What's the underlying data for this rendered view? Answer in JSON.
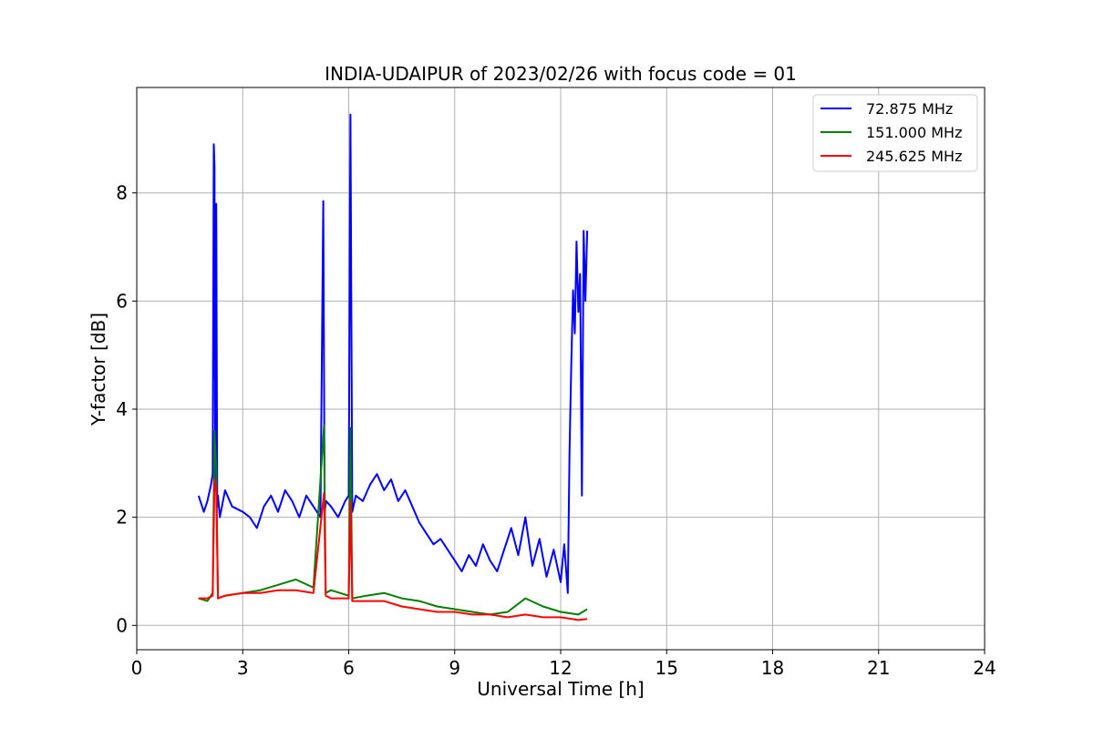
{
  "chart_data": {
    "type": "line",
    "title": "INDIA-UDAIPUR of 2023/02/26 with focus code = 01",
    "xlabel": "Universal Time [h]",
    "ylabel": "Y-factor [dB]",
    "xlim": [
      0,
      24
    ],
    "ylim": [
      -0.45,
      9.95
    ],
    "xticks": [
      0,
      3,
      6,
      9,
      12,
      15,
      18,
      21,
      24
    ],
    "yticks": [
      0,
      2,
      4,
      6,
      8
    ],
    "grid": true,
    "legend_position": "top-right",
    "series": [
      {
        "name": "72.875 MHz",
        "color": "#0000ff",
        "x": [
          1.75,
          1.9,
          2.0,
          2.1,
          2.15,
          2.18,
          2.2,
          2.22,
          2.25,
          2.28,
          2.3,
          2.35,
          2.5,
          2.7,
          3.0,
          3.2,
          3.4,
          3.6,
          3.8,
          4.0,
          4.2,
          4.4,
          4.6,
          4.8,
          5.0,
          5.2,
          5.28,
          5.32,
          5.36,
          5.5,
          5.7,
          5.9,
          6.0,
          6.05,
          6.1,
          6.2,
          6.4,
          6.6,
          6.8,
          7.0,
          7.2,
          7.4,
          7.6,
          7.8,
          8.0,
          8.2,
          8.4,
          8.6,
          8.8,
          9.0,
          9.2,
          9.4,
          9.6,
          9.8,
          10.0,
          10.2,
          10.4,
          10.6,
          10.8,
          11.0,
          11.2,
          11.4,
          11.6,
          11.8,
          12.0,
          12.1,
          12.2,
          12.25,
          12.3,
          12.35,
          12.4,
          12.45,
          12.5,
          12.55,
          12.6,
          12.65,
          12.7,
          12.75
        ],
        "y": [
          2.4,
          2.1,
          2.3,
          2.6,
          2.8,
          8.9,
          8.5,
          2.5,
          7.8,
          2.2,
          2.4,
          2.0,
          2.5,
          2.2,
          2.1,
          2.0,
          1.8,
          2.2,
          2.4,
          2.1,
          2.5,
          2.3,
          2.0,
          2.4,
          2.2,
          2.0,
          7.85,
          2.1,
          2.3,
          2.2,
          2.0,
          2.3,
          2.4,
          9.45,
          2.1,
          2.4,
          2.3,
          2.6,
          2.8,
          2.5,
          2.7,
          2.3,
          2.5,
          2.2,
          1.9,
          1.7,
          1.5,
          1.6,
          1.4,
          1.2,
          1.0,
          1.3,
          1.1,
          1.5,
          1.2,
          1.0,
          1.4,
          1.8,
          1.3,
          2.0,
          1.1,
          1.6,
          0.9,
          1.4,
          0.8,
          1.5,
          0.6,
          3.2,
          4.8,
          6.2,
          5.4,
          7.1,
          5.8,
          6.5,
          2.4,
          7.3,
          6.0,
          7.3
        ]
      },
      {
        "name": "151.000 MHz",
        "color": "#008000",
        "x": [
          1.75,
          2.0,
          2.15,
          2.2,
          2.25,
          2.3,
          2.5,
          3.0,
          3.5,
          4.0,
          4.5,
          5.0,
          5.3,
          5.35,
          5.5,
          6.0,
          6.05,
          6.1,
          6.5,
          7.0,
          7.5,
          8.0,
          8.5,
          9.0,
          9.5,
          10.0,
          10.5,
          11.0,
          11.5,
          12.0,
          12.5,
          12.75
        ],
        "y": [
          0.5,
          0.45,
          0.6,
          3.6,
          2.9,
          0.5,
          0.55,
          0.6,
          0.65,
          0.75,
          0.85,
          0.7,
          3.7,
          0.6,
          0.65,
          0.55,
          3.65,
          0.5,
          0.55,
          0.6,
          0.5,
          0.45,
          0.35,
          0.3,
          0.25,
          0.2,
          0.25,
          0.5,
          0.35,
          0.25,
          0.2,
          0.3
        ]
      },
      {
        "name": "245.625 MHz",
        "color": "#ff0000",
        "x": [
          1.75,
          2.0,
          2.15,
          2.2,
          2.25,
          2.3,
          2.5,
          3.0,
          3.5,
          4.0,
          4.5,
          5.0,
          5.3,
          5.35,
          5.5,
          6.0,
          6.05,
          6.1,
          6.5,
          7.0,
          7.5,
          8.0,
          8.5,
          9.0,
          9.5,
          10.0,
          10.5,
          11.0,
          11.5,
          12.0,
          12.5,
          12.75
        ],
        "y": [
          0.5,
          0.5,
          0.55,
          2.7,
          2.5,
          0.5,
          0.55,
          0.6,
          0.6,
          0.65,
          0.65,
          0.6,
          2.45,
          0.55,
          0.5,
          0.5,
          2.3,
          0.45,
          0.45,
          0.45,
          0.35,
          0.3,
          0.25,
          0.25,
          0.2,
          0.2,
          0.15,
          0.2,
          0.15,
          0.15,
          0.1,
          0.12
        ]
      }
    ]
  }
}
